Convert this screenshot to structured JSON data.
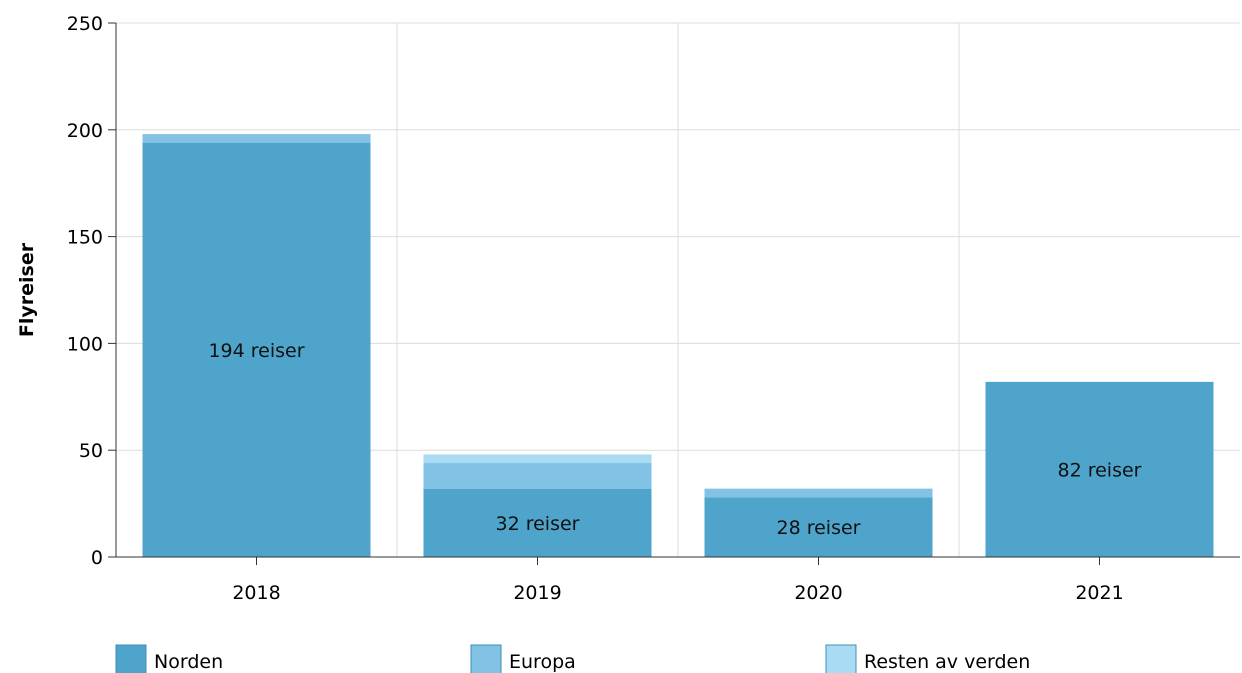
{
  "chart_data": {
    "type": "bar",
    "stacked": true,
    "categories": [
      "2018",
      "2019",
      "2020",
      "2021"
    ],
    "series": [
      {
        "name": "Norden",
        "values": [
          194,
          32,
          28,
          82
        ],
        "color": "#4fa4cb"
      },
      {
        "name": "Europa",
        "values": [
          4,
          12,
          4,
          0
        ],
        "color": "#82c3e5"
      },
      {
        "name": "Resten av verden",
        "values": [
          0,
          4,
          0,
          0
        ],
        "color": "#a9dcf3"
      }
    ],
    "data_labels": [
      "194 reiser",
      "32 reiser",
      "28 reiser",
      "82 reiser"
    ],
    "ylabel": "Flyreiser",
    "xlabel": "",
    "ylim": [
      0,
      250
    ],
    "yticks": [
      0,
      50,
      100,
      150,
      200,
      250
    ],
    "grid": true,
    "legend_position": "bottom"
  }
}
